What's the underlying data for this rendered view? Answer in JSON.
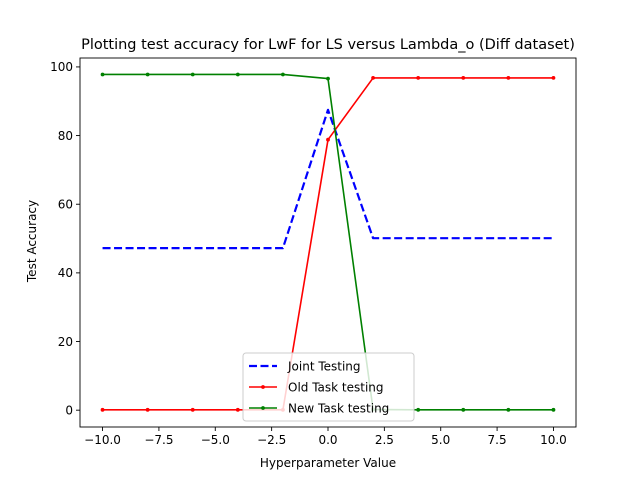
{
  "chart_data": {
    "type": "line",
    "title": "Plotting test accuracy for LwF for LS versus Lambda_o (Diff dataset)",
    "xlabel": "Hyperparameter Value",
    "ylabel": "Test Accuracy",
    "xlim": [
      -11,
      11
    ],
    "ylim": [
      -4.9,
      102.6
    ],
    "xticks": [
      -10,
      -7.5,
      -5,
      -2.5,
      0,
      2.5,
      5,
      7.5,
      10
    ],
    "xtick_labels": [
      "−10.0",
      "−7.5",
      "−5.0",
      "−2.5",
      "0.0",
      "2.5",
      "5.0",
      "7.5",
      "10.0"
    ],
    "yticks": [
      0,
      20,
      40,
      60,
      80,
      100
    ],
    "ytick_labels": [
      "0",
      "20",
      "40",
      "60",
      "80",
      "100"
    ],
    "grid": false,
    "legend_position": "bottom-center",
    "x": [
      -10,
      -8,
      -6,
      -4,
      -2,
      0,
      2,
      4,
      6,
      8,
      10
    ],
    "series": [
      {
        "name": "Joint Testing",
        "color": "#0000ff",
        "style": "dashed",
        "marker": "none",
        "values": [
          47.2,
          47.2,
          47.2,
          47.2,
          47.2,
          87.5,
          50.1,
          50.1,
          50.1,
          50.1,
          50.1
        ]
      },
      {
        "name": "Old Task testing",
        "color": "#ff0000",
        "style": "solid",
        "marker": "dot",
        "values": [
          0.1,
          0.1,
          0.1,
          0.1,
          0.1,
          78.8,
          96.8,
          96.8,
          96.8,
          96.8,
          96.8
        ]
      },
      {
        "name": "New Task testing",
        "color": "#008000",
        "style": "solid",
        "marker": "dot",
        "values": [
          97.8,
          97.8,
          97.8,
          97.8,
          97.8,
          96.6,
          0.2,
          0.1,
          0.1,
          0.1,
          0.1
        ]
      }
    ]
  }
}
